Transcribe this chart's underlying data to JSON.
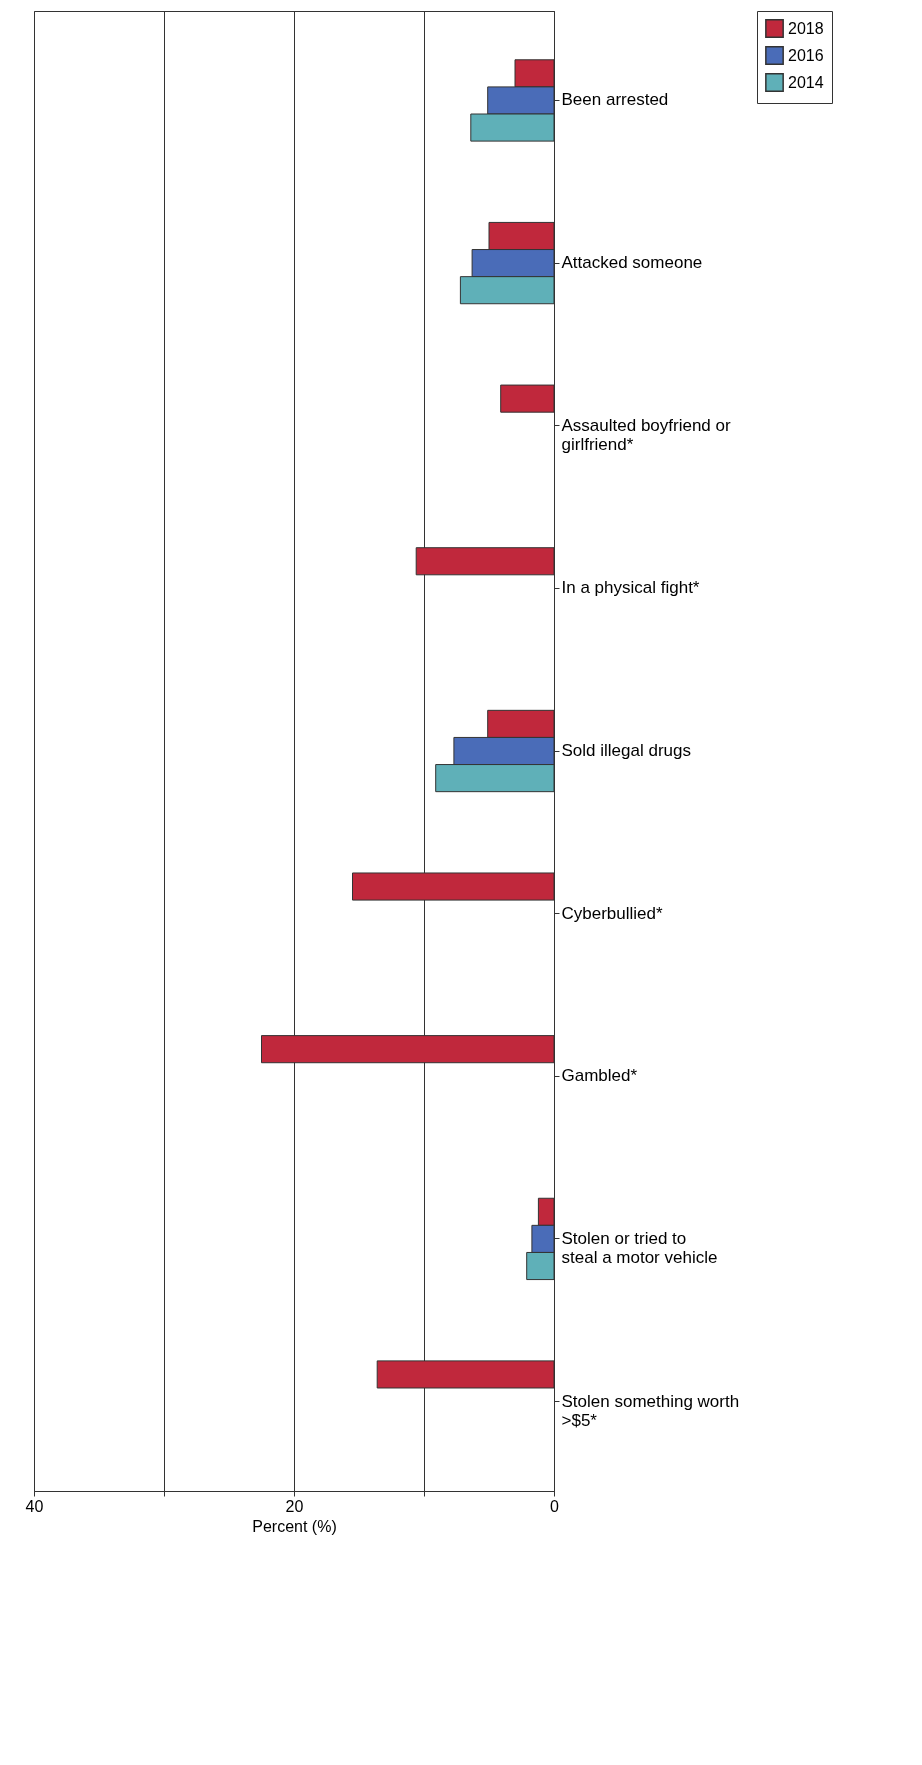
{
  "chart_data": {
    "type": "bar",
    "orientation": "horizontal",
    "xlabel": "Percent (%)",
    "categories": [
      "Been arrested",
      "Attacked someone",
      "Assaulted boyfriend or girlfriend*",
      "In a physical fight*",
      "Sold illegal drugs",
      "Cyberbullied*",
      "Gambled*",
      "Stolen or tried to steal a motor vehicle",
      "Stolen something worth >$5*"
    ],
    "series": [
      {
        "name": "2018",
        "color": "#c0283c",
        "values": [
          3.0,
          5.0,
          4.1,
          10.6,
          5.1,
          15.5,
          22.5,
          1.2,
          13.6
        ]
      },
      {
        "name": "2016",
        "color": "#4a6cb8",
        "values": [
          5.1,
          6.3,
          null,
          null,
          7.7,
          null,
          null,
          1.7,
          null
        ]
      },
      {
        "name": "2014",
        "color": "#5fb0b8",
        "values": [
          6.4,
          7.2,
          null,
          null,
          9.1,
          null,
          null,
          2.1,
          null
        ]
      }
    ],
    "xlim": [
      40,
      0
    ],
    "xticks": [
      40,
      {
        "value": 30,
        "label": null
      },
      20,
      {
        "value": 10,
        "label": null
      },
      0
    ],
    "grid": "x",
    "legend": "right"
  }
}
